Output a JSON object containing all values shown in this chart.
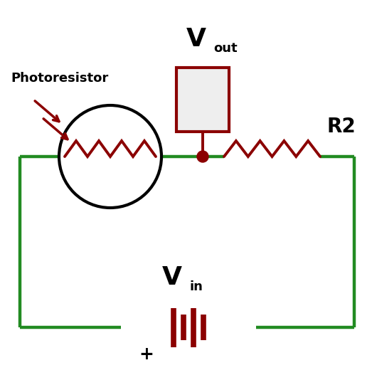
{
  "bg_color": "#ffffff",
  "wire_color": "#228B22",
  "component_color": "#8B0000",
  "text_color": "#000000",
  "wire_lw": 3.2,
  "component_lw": 2.8,
  "circle_lw": 3.0,
  "photoresistor_label": "Photoresistor",
  "r2_label": "R2",
  "vin_label_main": "V",
  "vin_label_sub": "in",
  "vout_label_main": "V",
  "vout_label_sub": "out",
  "plus_label": "+"
}
